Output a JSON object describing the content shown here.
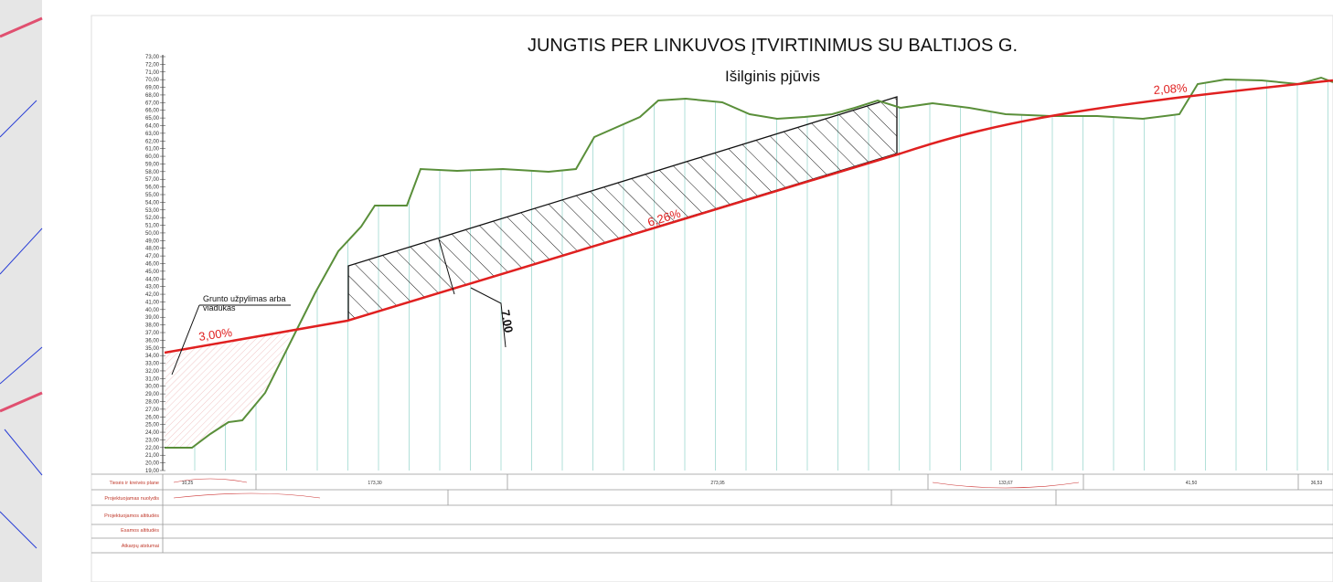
{
  "title": "JUNGTIS PER LINKUVOS ĮTVIRTINIMUS SU BALTIJOS G.",
  "subtitle": "Išilginis pjūvis",
  "annotations": {
    "slopes": [
      "3,00%",
      "6,26%",
      "2,08%"
    ],
    "fill_note": [
      "Grunto užpylimas arba",
      "viadukas"
    ],
    "depth": "7.00"
  },
  "axis_labels": [
    "19,00",
    "20,00",
    "21,00",
    "22,00",
    "23,00",
    "24,00",
    "25,00",
    "26,00",
    "27,00",
    "28,00",
    "29,00",
    "30,00",
    "31,00",
    "32,00",
    "33,00",
    "34,00",
    "35,00",
    "36,00",
    "37,00",
    "38,00",
    "39,00",
    "40,00",
    "41,00",
    "42,00",
    "43,00",
    "44,00",
    "45,00",
    "46,00",
    "47,00",
    "48,00",
    "49,00",
    "50,00",
    "51,00",
    "52,00",
    "53,00",
    "54,00",
    "55,00",
    "56,00",
    "57,00",
    "58,00",
    "59,00",
    "60,00",
    "61,00",
    "62,00",
    "63,00",
    "64,00",
    "65,00",
    "66,00",
    "67,00",
    "68,00",
    "69,00",
    "70,00",
    "71,00",
    "72,00",
    "73,00"
  ],
  "table": {
    "row_labels": [
      "Tiesės ir kreivės plane",
      "Projektuojamas nuolydis",
      "Projektuojamos altitudės",
      "Esamos altitudės",
      "Atkarpų atstumai"
    ],
    "plan_lengths": [
      "10,25",
      "173,30",
      "273,95",
      "133,67",
      "41,50",
      "36,53"
    ]
  }
}
